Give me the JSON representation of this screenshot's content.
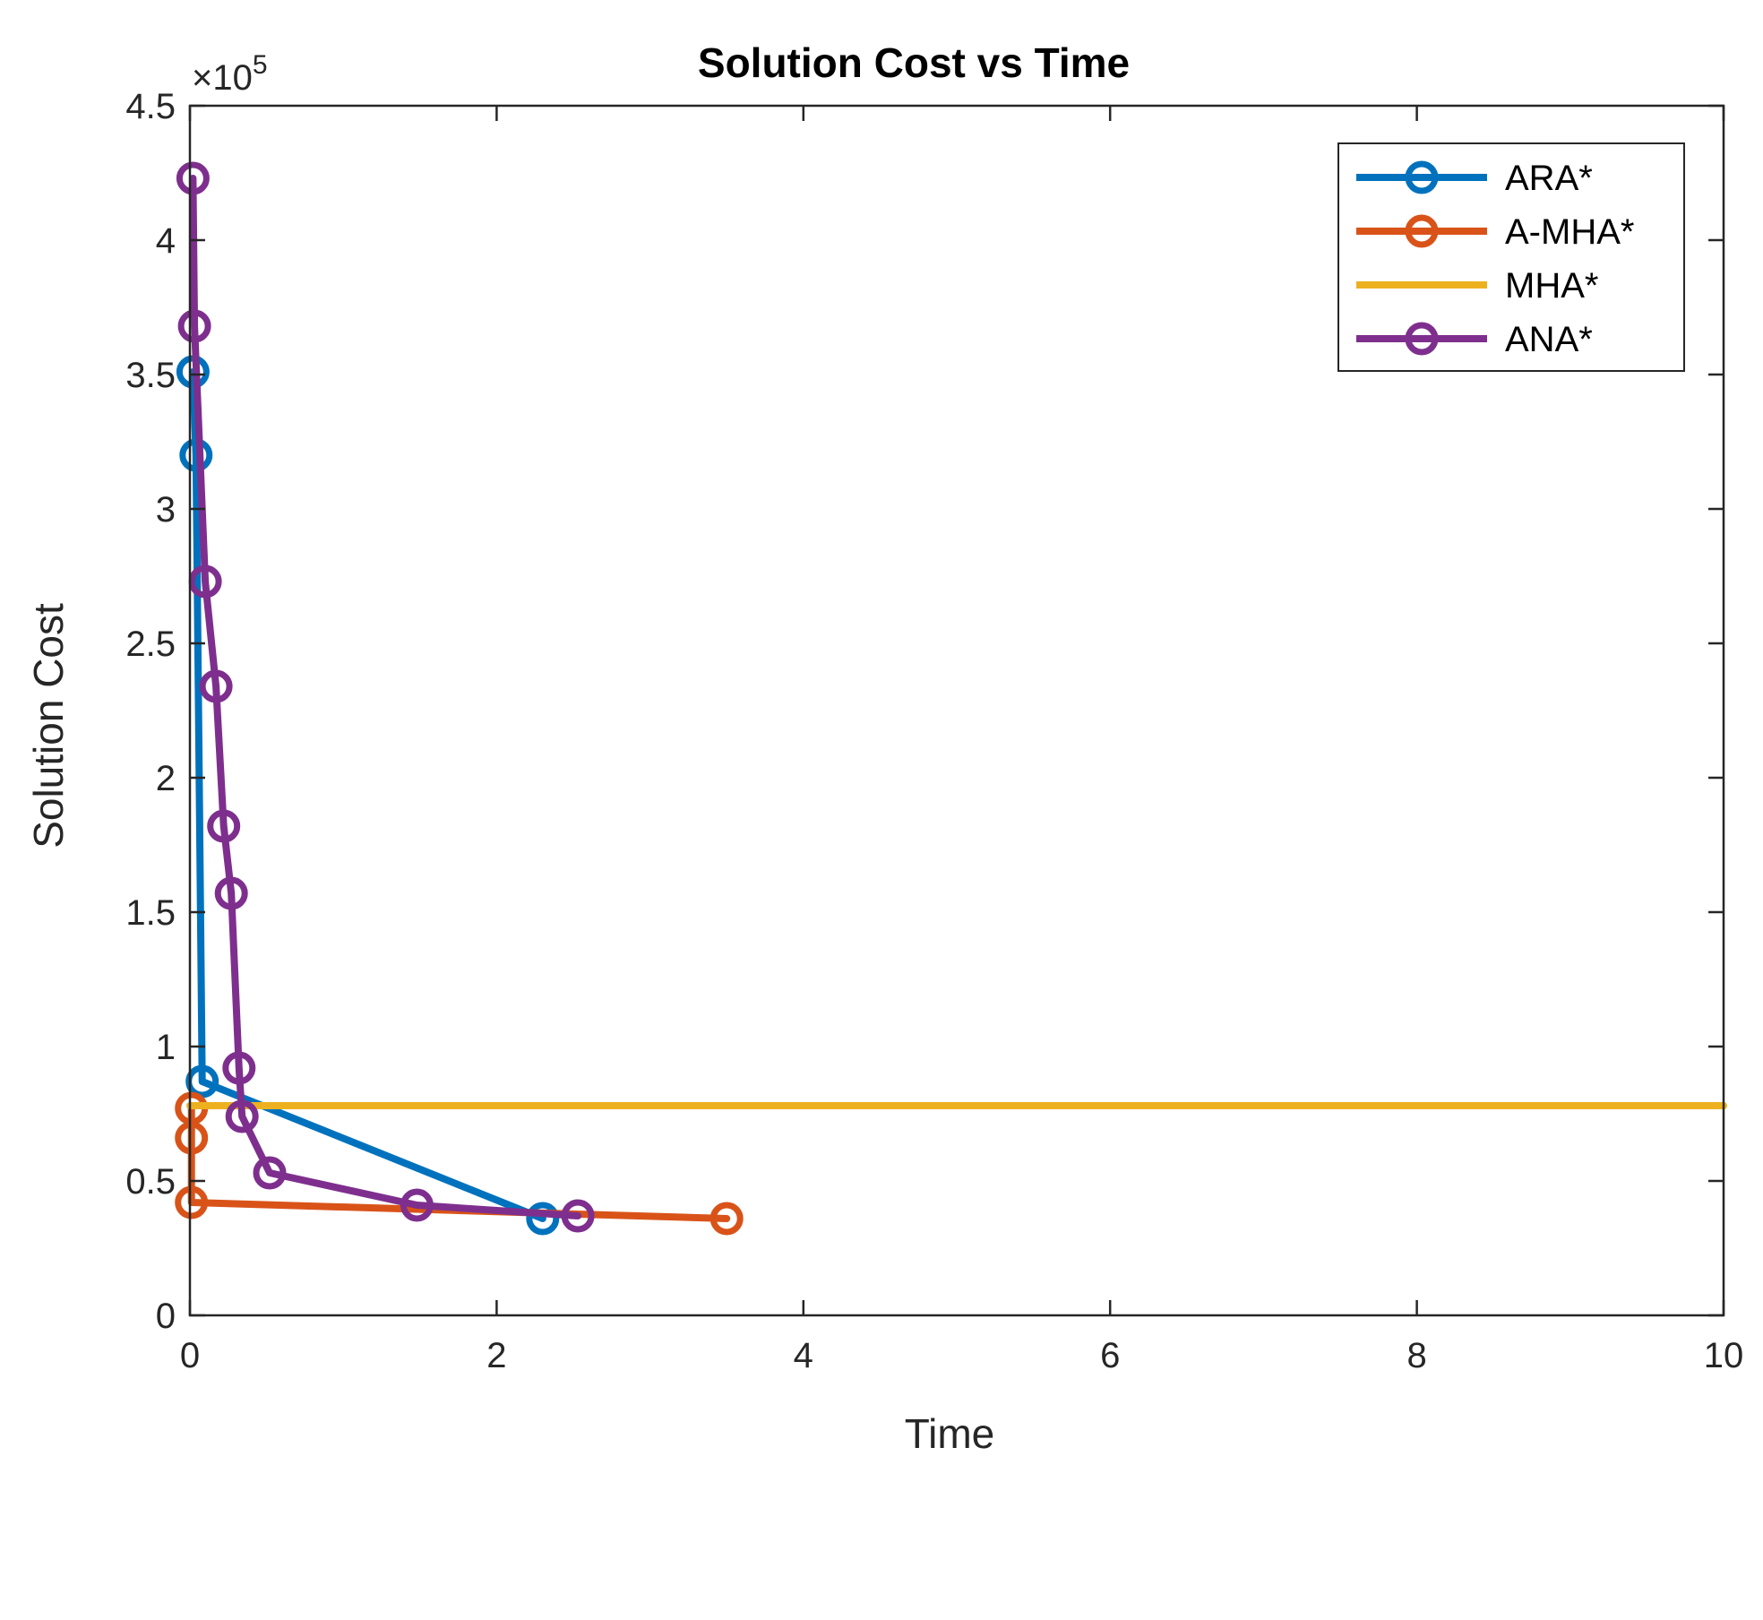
{
  "chart_data": {
    "type": "line",
    "title": "Solution Cost vs Time",
    "xlabel": "Time",
    "ylabel": "Solution Cost",
    "xlim": [
      0,
      10
    ],
    "ylim": [
      0,
      4.5
    ],
    "x_ticks": [
      "0",
      "2",
      "4",
      "6",
      "8",
      "10"
    ],
    "y_ticks": [
      "0",
      "0.5",
      "1",
      "1.5",
      "2",
      "2.5",
      "3",
      "3.5",
      "4",
      "4.5"
    ],
    "y_exponent": "×10",
    "y_exponent_power": "5",
    "grid": false,
    "legend_position": "top-right",
    "series": [
      {
        "name": "ARA*",
        "color": "#0072BD",
        "marker": "circle",
        "points": [
          [
            0.02,
            3.51
          ],
          [
            0.04,
            3.2
          ],
          [
            0.08,
            0.87
          ],
          [
            2.3,
            0.36
          ]
        ]
      },
      {
        "name": "A-MHA*",
        "color": "#D95319",
        "marker": "circle",
        "points": [
          [
            0.01,
            0.77
          ],
          [
            0.01,
            0.66
          ],
          [
            0.01,
            0.42
          ],
          [
            3.5,
            0.36
          ]
        ]
      },
      {
        "name": "MHA*",
        "color": "#EDB120",
        "marker": "none",
        "points": [
          [
            0.0,
            0.78
          ],
          [
            10.0,
            0.78
          ]
        ]
      },
      {
        "name": "ANA*",
        "color": "#7E2F8E",
        "marker": "circle",
        "points": [
          [
            0.02,
            4.23
          ],
          [
            0.03,
            3.68
          ],
          [
            0.1,
            2.73
          ],
          [
            0.17,
            2.34
          ],
          [
            0.22,
            1.82
          ],
          [
            0.27,
            1.57
          ],
          [
            0.32,
            0.92
          ],
          [
            0.34,
            0.74
          ],
          [
            0.52,
            0.53
          ],
          [
            1.48,
            0.41
          ],
          [
            2.53,
            0.37
          ]
        ]
      }
    ]
  }
}
